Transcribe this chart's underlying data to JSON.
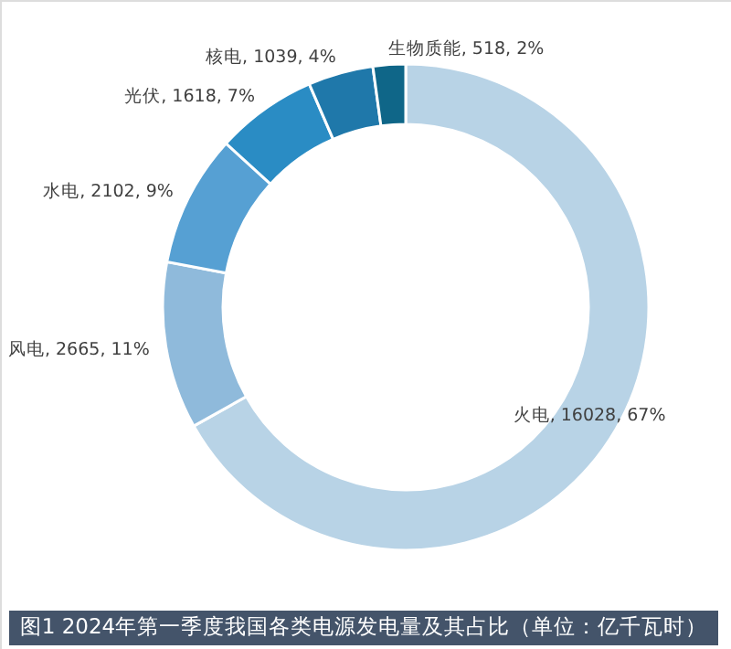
{
  "chart_data": {
    "type": "donut",
    "title": "图1 2024年第一季度我国各类电源发电量及其占比（单位：亿千瓦时）",
    "categories": [
      "火电",
      "风电",
      "水电",
      "光伏",
      "核电",
      "生物质能"
    ],
    "values": [
      16028,
      2665,
      2102,
      1618,
      1039,
      518
    ],
    "colors": [
      "#b8d3e6",
      "#8fbadb",
      "#56a0d3",
      "#2a8cc4",
      "#1f78aa",
      "#0f6688"
    ],
    "value_labels": [
      "16028, 67%",
      "2665, 11%",
      "2102, 9%",
      "1618, 7%",
      "1039, 4%",
      "518, 2%"
    ]
  }
}
